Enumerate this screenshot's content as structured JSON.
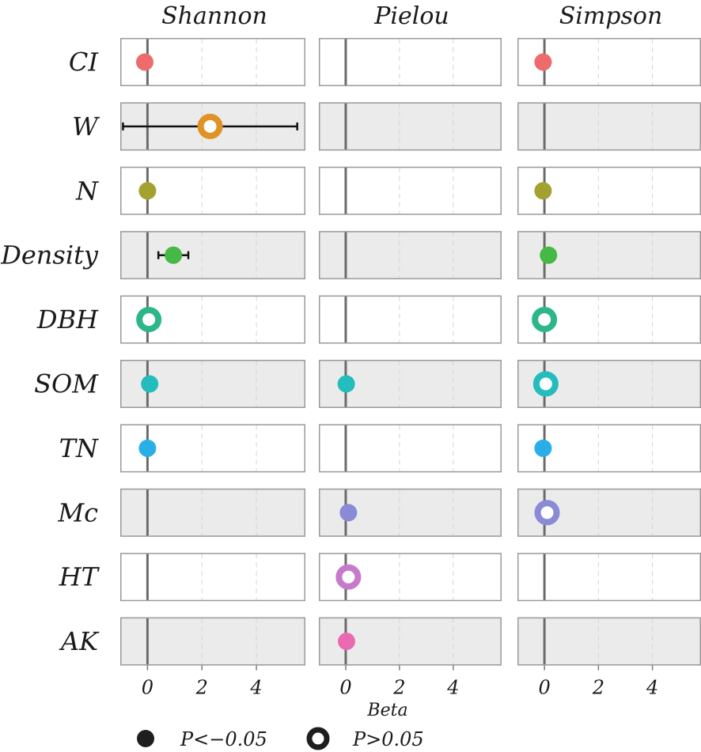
{
  "chart_data": {
    "type": "scatter",
    "variant": "faceted-coefficient-plot",
    "panels": [
      "Shannon",
      "Pielou",
      "Simpson"
    ],
    "rows": [
      "CI",
      "W",
      "N",
      "Density",
      "DBH",
      "SOM",
      "TN",
      "Mc",
      "HT",
      "AK"
    ],
    "row_colors": [
      "#ee6b6b",
      "#e09224",
      "#a3a12f",
      "#45b845",
      "#2db786",
      "#24bcbc",
      "#2aaee8",
      "#8a8ad6",
      "#c77ac9",
      "#ea6ab2"
    ],
    "xlabel": "Beta",
    "xlim": [
      -1,
      5.8
    ],
    "xticks": [
      0,
      2,
      4
    ],
    "tick_labels": [
      "0",
      "2",
      "4"
    ],
    "reference_line": 0,
    "points": [
      {
        "panel": "Shannon",
        "row": "CI",
        "beta": -0.1,
        "significant": true
      },
      {
        "panel": "Shannon",
        "row": "W",
        "beta": 2.3,
        "lower": -0.9,
        "upper": 5.5,
        "significant": false
      },
      {
        "panel": "Shannon",
        "row": "N",
        "beta": 0.0,
        "significant": true
      },
      {
        "panel": "Shannon",
        "row": "Density",
        "beta": 0.95,
        "lower": 0.4,
        "upper": 1.5,
        "significant": true
      },
      {
        "panel": "Shannon",
        "row": "DBH",
        "beta": 0.05,
        "significant": false
      },
      {
        "panel": "Shannon",
        "row": "SOM",
        "beta": 0.08,
        "significant": true
      },
      {
        "panel": "Shannon",
        "row": "TN",
        "beta": 0.0,
        "significant": true
      },
      {
        "panel": "Pielou",
        "row": "SOM",
        "beta": 0.02,
        "significant": true
      },
      {
        "panel": "Pielou",
        "row": "Mc",
        "beta": 0.1,
        "significant": true
      },
      {
        "panel": "Pielou",
        "row": "HT",
        "beta": 0.1,
        "significant": false
      },
      {
        "panel": "Pielou",
        "row": "AK",
        "beta": 0.03,
        "significant": true
      },
      {
        "panel": "Simpson",
        "row": "CI",
        "beta": -0.05,
        "significant": true
      },
      {
        "panel": "Simpson",
        "row": "N",
        "beta": -0.05,
        "significant": true
      },
      {
        "panel": "Simpson",
        "row": "Density",
        "beta": 0.15,
        "significant": true
      },
      {
        "panel": "Simpson",
        "row": "DBH",
        "beta": 0.0,
        "significant": false
      },
      {
        "panel": "Simpson",
        "row": "SOM",
        "beta": 0.05,
        "significant": false
      },
      {
        "panel": "Simpson",
        "row": "TN",
        "beta": -0.05,
        "significant": true
      },
      {
        "panel": "Simpson",
        "row": "Mc",
        "beta": 0.1,
        "significant": false
      }
    ],
    "legend": [
      {
        "label": "P<−0.05",
        "style": "filled"
      },
      {
        "label": "P>0.05",
        "style": "open"
      }
    ],
    "legend_position": "bottom"
  }
}
